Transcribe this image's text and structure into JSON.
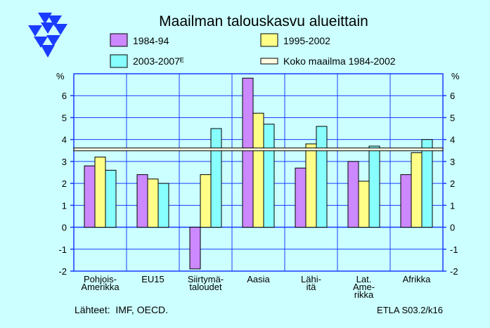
{
  "colors": {
    "background": "#ccffff",
    "axis": "#1a3cff",
    "logo": "#1a3cff",
    "series_1984_94": "#cc88ff",
    "series_1995_2002": "#ffff88",
    "series_2003_2007": "#88ffff",
    "world_line": "#fffae0"
  },
  "chart_data": {
    "type": "bar",
    "title": "Maailman talouskasvu alueittain",
    "xlabel": "",
    "ylabel": "",
    "y_unit_left": "%",
    "y_unit_right": "%",
    "ylim": [
      -2,
      7
    ],
    "yticks": [
      "-2",
      "-1",
      "0",
      "1",
      "2",
      "3",
      "4",
      "5",
      "6"
    ],
    "grid": true,
    "legend_position": "top",
    "categories": [
      [
        "Pohjois-",
        "Amerikka"
      ],
      [
        "EU15"
      ],
      [
        "Siirtymä-",
        "taloudet"
      ],
      [
        "Aasia"
      ],
      [
        "Lähi-",
        "itä"
      ],
      [
        "Lat.",
        "Ame-",
        "rikka"
      ],
      [
        "Afrikka"
      ]
    ],
    "series": [
      {
        "name": "1984-94",
        "values": [
          2.8,
          2.4,
          -1.9,
          6.8,
          2.7,
          3.0,
          2.4
        ]
      },
      {
        "name": "1995-2002",
        "values": [
          3.2,
          2.2,
          2.4,
          5.2,
          3.8,
          2.1,
          3.4
        ]
      },
      {
        "name": "2003-2007ᴱ",
        "values": [
          2.6,
          2.0,
          4.5,
          4.7,
          4.6,
          3.7,
          4.0
        ]
      }
    ],
    "reference_line": {
      "name": "Koko maailma 1984-2002",
      "value": 3.55
    }
  },
  "footer": {
    "sources": "Lähteet:  IMF, OECD.",
    "code": "ETLA S03.2/k16"
  }
}
